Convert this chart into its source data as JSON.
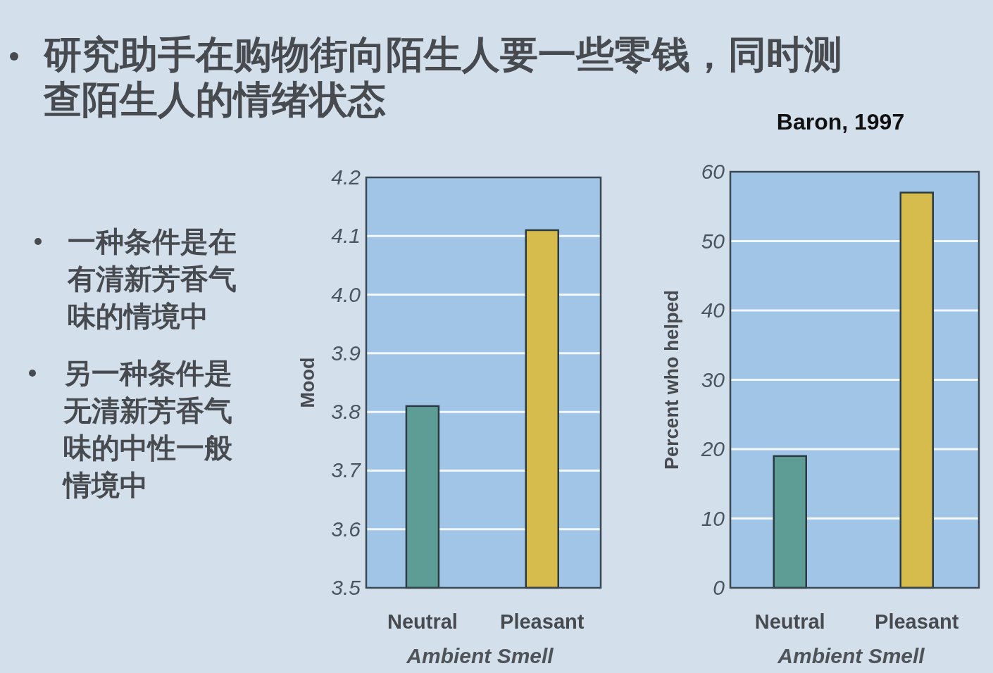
{
  "chart_data": [
    {
      "type": "other",
      "title": "研究助手在购物街向陌生人要一些零钱，同时测查陌生人的情绪状态",
      "annotations": [
        "一种条件是在有清新芳香气味的情境中",
        "另一种条件是无清新芳香气味的中性一般情境中"
      ]
    },
    {
      "type": "bar",
      "ylabel": "Mood",
      "xlabel": "Ambient Smell",
      "categories": [
        "Neutral",
        "Pleasant"
      ],
      "values": [
        3.81,
        4.11
      ],
      "colors": [
        "#5e9d96",
        "#d6bc4c"
      ],
      "ylim": [
        3.5,
        4.2
      ],
      "yticks": [
        3.5,
        3.6,
        3.7,
        3.8,
        3.9,
        {
          "value": 4.0,
          "label": "4.0"
        },
        4.1,
        4.2
      ],
      "grid": "y"
    },
    {
      "type": "bar",
      "ylabel": "Percent who helped",
      "xlabel": "Ambient Smell",
      "categories": [
        "Neutral",
        "Pleasant"
      ],
      "values": [
        19,
        57
      ],
      "colors": [
        "#5e9d96",
        "#d6bc4c"
      ],
      "ylim": [
        0,
        60
      ],
      "yticks": [
        0,
        10,
        20,
        30,
        40,
        50,
        60
      ],
      "grid": "y",
      "annotations": [
        "Baron, 1997"
      ]
    }
  ]
}
